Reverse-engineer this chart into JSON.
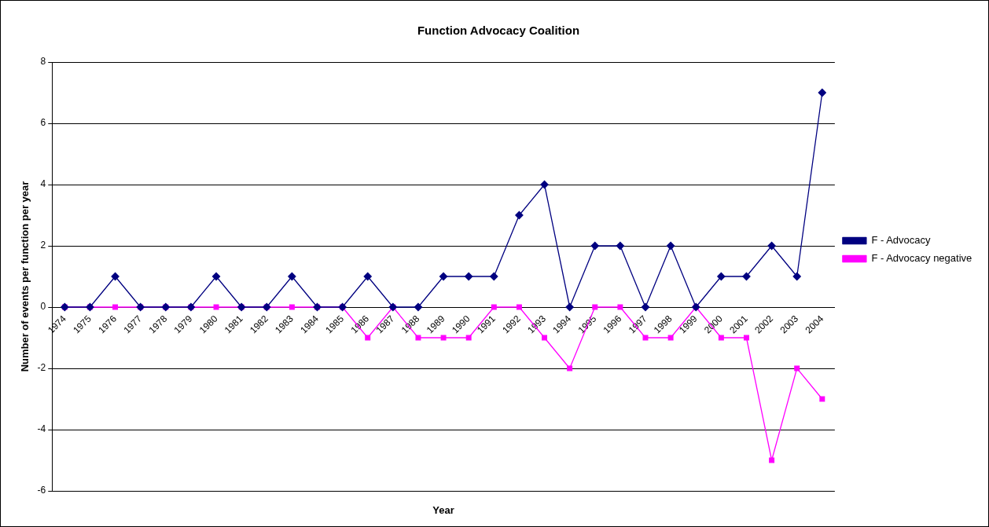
{
  "chart_data": {
    "type": "line",
    "title": "Function Advocacy Coalition",
    "xlabel": "Year",
    "ylabel": "Number of events per function per year",
    "categories": [
      "1974",
      "1975",
      "1976",
      "1977",
      "1978",
      "1979",
      "1980",
      "1981",
      "1982",
      "1983",
      "1984",
      "1985",
      "1986",
      "1987",
      "1988",
      "1989",
      "1990",
      "1991",
      "1992",
      "1993",
      "1994",
      "1995",
      "1996",
      "1997",
      "1998",
      "1999",
      "2000",
      "2001",
      "2002",
      "2003",
      "2004"
    ],
    "series": [
      {
        "name": "F - Advocacy",
        "color": "#000080",
        "marker": "diamond",
        "values": [
          0,
          0,
          1,
          0,
          0,
          0,
          1,
          0,
          0,
          1,
          0,
          0,
          1,
          0,
          0,
          1,
          1,
          1,
          3,
          4,
          0,
          2,
          2,
          0,
          2,
          0,
          1,
          1,
          2,
          1,
          7
        ]
      },
      {
        "name": "F - Advocacy negative",
        "color": "#ff00ff",
        "marker": "square",
        "values": [
          0,
          0,
          0,
          0,
          0,
          0,
          0,
          0,
          0,
          0,
          0,
          0,
          -1,
          0,
          -1,
          -1,
          -1,
          0,
          0,
          -1,
          -2,
          0,
          0,
          -1,
          -1,
          0,
          -1,
          -1,
          -5,
          -2,
          -3
        ]
      }
    ],
    "ylim": [
      -6,
      8
    ],
    "yticks": [
      -6,
      -4,
      -2,
      0,
      2,
      4,
      6,
      8
    ],
    "grid": "y",
    "legend": "right",
    "line_style": "solid"
  }
}
